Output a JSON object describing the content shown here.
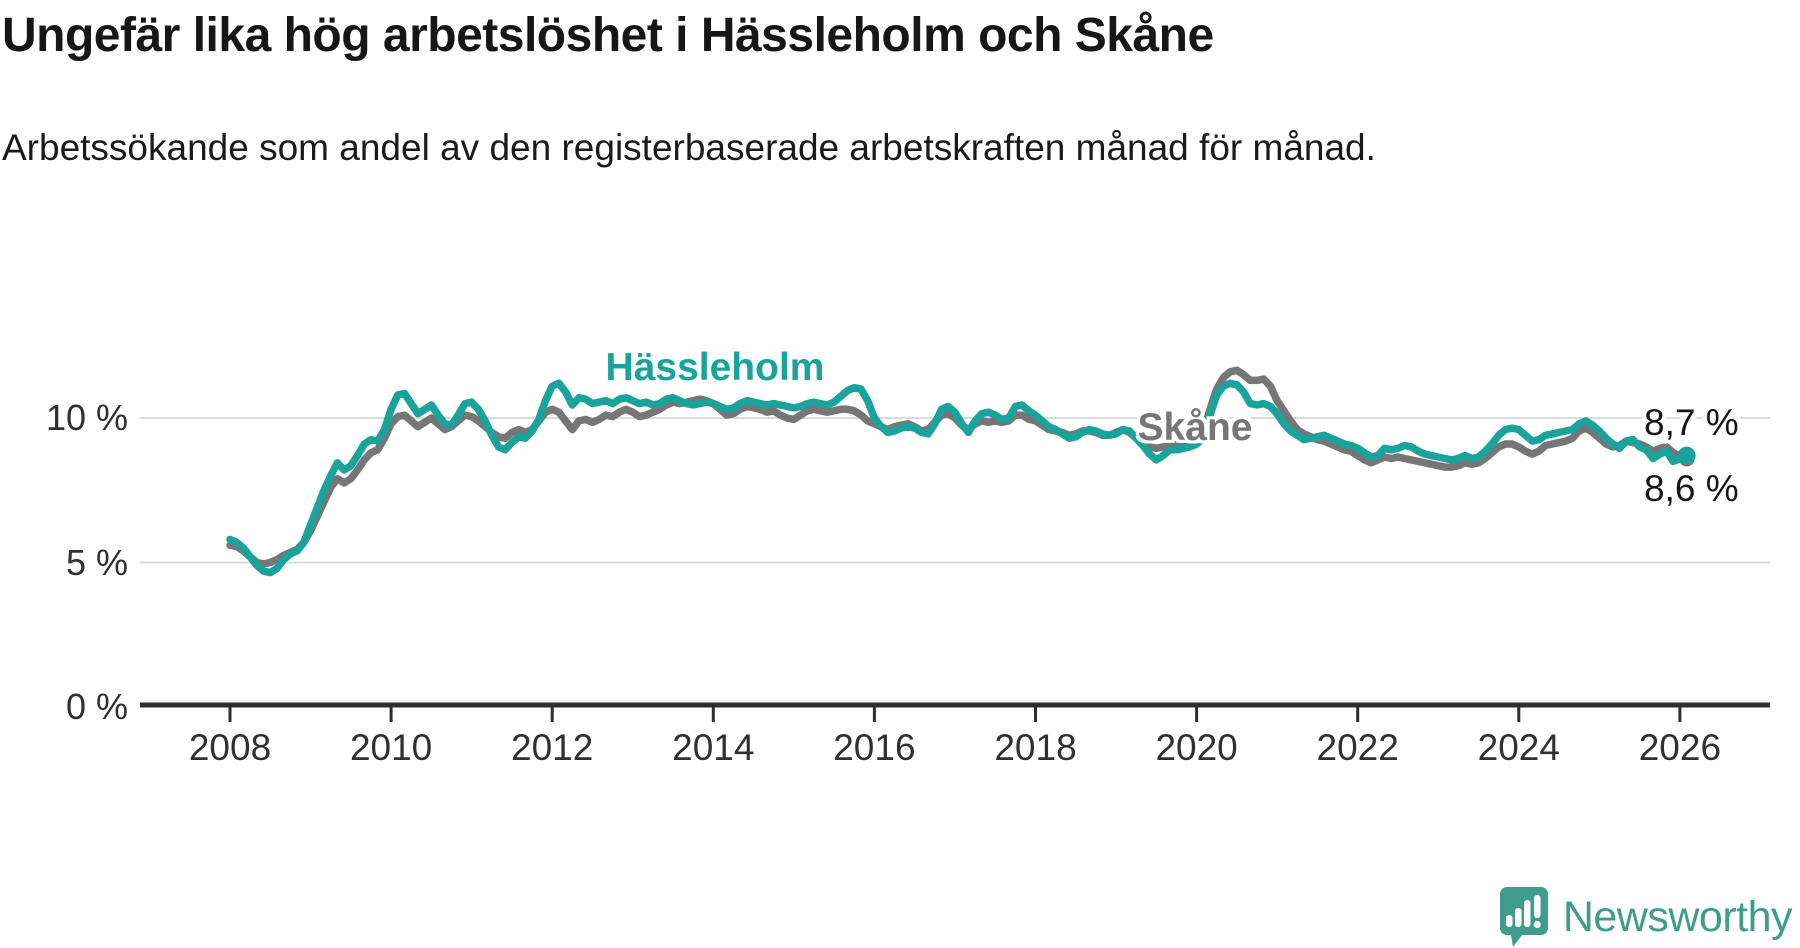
{
  "header": {
    "title": "Ungefär lika hög arbetslöshet i Hässleholm och Skåne",
    "subtitle": "Arbetssökande som andel av den registerbaserade arbetskraften månad för månad."
  },
  "chart_data": {
    "type": "line",
    "title": "Ungefär lika hög arbetslöshet i Hässleholm och Skåne",
    "xlabel": "",
    "ylabel": "",
    "grid": "horizontal",
    "x_axis": {
      "unit": "year",
      "ticks": [
        2008,
        2010,
        2012,
        2014,
        2016,
        2018,
        2020,
        2022,
        2024,
        2026
      ]
    },
    "y_axis": {
      "ylim": [
        0,
        13.8
      ],
      "ticks": [
        {
          "value": 0,
          "label": "0 %"
        },
        {
          "value": 5,
          "label": "5 %"
        },
        {
          "value": 10,
          "label": "10 %"
        }
      ]
    },
    "series": [
      {
        "name": "Hässleholm",
        "color": "#1aa39a",
        "end_label": "8,7 %",
        "end_value": 8.7,
        "start_year": 2008,
        "start_month": 1,
        "frequency": "monthly",
        "values": [
          5.8,
          5.7,
          5.5,
          5.2,
          4.9,
          4.7,
          4.65,
          4.8,
          5.1,
          5.3,
          5.4,
          5.7,
          6.3,
          6.9,
          7.5,
          8.0,
          8.45,
          8.2,
          8.35,
          8.7,
          9.1,
          9.25,
          9.2,
          9.6,
          10.3,
          10.8,
          10.85,
          10.5,
          10.15,
          10.3,
          10.45,
          10.1,
          9.8,
          9.75,
          10.1,
          10.5,
          10.55,
          10.3,
          9.9,
          9.4,
          9.0,
          8.9,
          9.15,
          9.35,
          9.3,
          9.55,
          9.95,
          10.6,
          11.1,
          11.2,
          10.9,
          10.45,
          10.7,
          10.65,
          10.5,
          10.55,
          10.6,
          10.5,
          10.65,
          10.7,
          10.6,
          10.5,
          10.55,
          10.45,
          10.5,
          10.65,
          10.7,
          10.6,
          10.5,
          10.45,
          10.5,
          10.55,
          10.5,
          10.4,
          10.3,
          10.35,
          10.5,
          10.6,
          10.55,
          10.5,
          10.45,
          10.5,
          10.45,
          10.4,
          10.35,
          10.4,
          10.5,
          10.55,
          10.5,
          10.45,
          10.55,
          10.75,
          10.95,
          11.05,
          11.0,
          10.6,
          10.0,
          9.7,
          9.5,
          9.55,
          9.65,
          9.7,
          9.65,
          9.5,
          9.45,
          9.8,
          10.3,
          10.4,
          10.2,
          9.8,
          9.5,
          9.9,
          10.15,
          10.2,
          10.1,
          9.95,
          10.0,
          10.4,
          10.45,
          10.25,
          10.1,
          9.9,
          9.7,
          9.6,
          9.45,
          9.3,
          9.35,
          9.5,
          9.6,
          9.55,
          9.45,
          9.4,
          9.45,
          9.6,
          9.55,
          9.3,
          9.05,
          8.75,
          8.55,
          8.7,
          8.9,
          8.9,
          8.95,
          9.0,
          9.1,
          9.3,
          10.1,
          10.8,
          11.1,
          11.2,
          11.15,
          10.9,
          10.5,
          10.45,
          10.5,
          10.4,
          10.15,
          9.8,
          9.55,
          9.4,
          9.25,
          9.3,
          9.35,
          9.4,
          9.3,
          9.2,
          9.1,
          9.05,
          8.95,
          8.8,
          8.65,
          8.7,
          8.95,
          8.9,
          8.95,
          9.05,
          9.0,
          8.85,
          8.75,
          8.7,
          8.65,
          8.6,
          8.55,
          8.6,
          8.7,
          8.6,
          8.65,
          8.85,
          9.1,
          9.4,
          9.6,
          9.65,
          9.6,
          9.4,
          9.2,
          9.25,
          9.4,
          9.45,
          9.5,
          9.55,
          9.6,
          9.8,
          9.9,
          9.75,
          9.55,
          9.3,
          9.1,
          8.95,
          9.2,
          9.25,
          9.0,
          8.9,
          8.6,
          8.75,
          8.85,
          8.5,
          8.6,
          8.7
        ]
      },
      {
        "name": "Skåne",
        "color": "#767676",
        "end_label": "8,6 %",
        "end_value": 8.6,
        "start_year": 2008,
        "start_month": 1,
        "frequency": "monthly",
        "values": [
          5.6,
          5.55,
          5.4,
          5.2,
          5.0,
          4.95,
          5.0,
          5.1,
          5.25,
          5.35,
          5.45,
          5.7,
          6.1,
          6.6,
          7.1,
          7.6,
          7.9,
          7.75,
          7.9,
          8.2,
          8.55,
          8.8,
          8.9,
          9.3,
          9.8,
          10.05,
          10.1,
          9.9,
          9.7,
          9.85,
          10.0,
          9.8,
          9.6,
          9.7,
          9.9,
          10.1,
          10.05,
          9.9,
          9.7,
          9.5,
          9.35,
          9.3,
          9.5,
          9.6,
          9.5,
          9.6,
          9.9,
          10.2,
          10.3,
          10.2,
          9.9,
          9.6,
          9.9,
          9.95,
          9.85,
          9.95,
          10.1,
          10.05,
          10.2,
          10.3,
          10.2,
          10.05,
          10.1,
          10.2,
          10.3,
          10.45,
          10.55,
          10.5,
          10.55,
          10.6,
          10.65,
          10.6,
          10.5,
          10.3,
          10.1,
          10.15,
          10.3,
          10.4,
          10.35,
          10.3,
          10.2,
          10.25,
          10.1,
          10.0,
          9.95,
          10.1,
          10.25,
          10.3,
          10.25,
          10.2,
          10.25,
          10.3,
          10.3,
          10.25,
          10.1,
          9.9,
          9.8,
          9.7,
          9.6,
          9.7,
          9.75,
          9.8,
          9.7,
          9.55,
          9.6,
          9.85,
          10.1,
          10.15,
          10.0,
          9.75,
          9.6,
          9.8,
          9.9,
          9.85,
          9.9,
          9.85,
          9.9,
          10.1,
          10.1,
          9.95,
          9.9,
          9.75,
          9.6,
          9.55,
          9.5,
          9.4,
          9.45,
          9.55,
          9.55,
          9.5,
          9.4,
          9.4,
          9.5,
          9.6,
          9.5,
          9.3,
          9.15,
          9.0,
          8.95,
          9.0,
          9.05,
          9.1,
          9.15,
          9.2,
          9.3,
          9.5,
          10.3,
          11.0,
          11.4,
          11.6,
          11.65,
          11.5,
          11.3,
          11.3,
          11.35,
          11.1,
          10.6,
          10.25,
          9.9,
          9.6,
          9.45,
          9.35,
          9.25,
          9.2,
          9.1,
          9.0,
          8.9,
          8.85,
          8.7,
          8.55,
          8.45,
          8.55,
          8.65,
          8.6,
          8.65,
          8.6,
          8.55,
          8.5,
          8.45,
          8.4,
          8.35,
          8.3,
          8.3,
          8.35,
          8.45,
          8.4,
          8.45,
          8.6,
          8.8,
          9.0,
          9.1,
          9.1,
          9.0,
          8.85,
          8.75,
          8.85,
          9.05,
          9.1,
          9.15,
          9.2,
          9.3,
          9.55,
          9.65,
          9.5,
          9.3,
          9.1,
          9.0,
          9.05,
          9.2,
          9.15,
          9.1,
          9.0,
          8.85,
          8.95,
          9.0,
          8.8,
          8.7,
          8.6
        ]
      }
    ],
    "style": {
      "line_width": 7.5,
      "end_dot_radius": 9,
      "grid_color": "#dadada",
      "axis_color": "#2e2e2e",
      "tick_text_color": "#303030"
    }
  },
  "footer": {
    "brand": "Newsworthy",
    "brand_color": "#3f9c8e"
  }
}
